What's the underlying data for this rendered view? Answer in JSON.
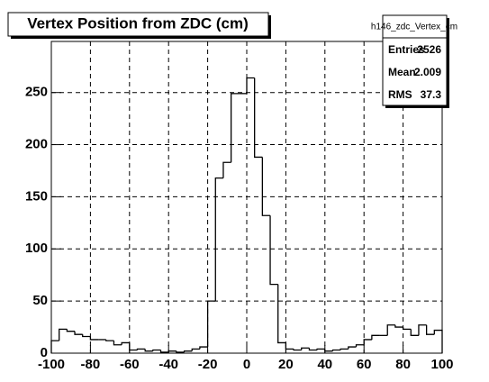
{
  "chart_data": {
    "type": "histogram",
    "title": "Vertex Position from ZDC (cm)",
    "bins": [
      -100,
      -96,
      -92,
      -88,
      -84,
      -80,
      -76,
      -72,
      -68,
      -64,
      -60,
      -56,
      -52,
      -48,
      -44,
      -40,
      -36,
      -32,
      -28,
      -24,
      -20,
      -16,
      -12,
      -8,
      -4,
      0,
      4,
      8,
      12,
      16,
      20,
      24,
      28,
      32,
      36,
      40,
      44,
      48,
      52,
      56,
      60,
      64,
      68,
      72,
      76,
      80,
      84,
      88,
      92,
      96,
      100
    ],
    "counts": [
      12,
      23,
      21,
      18,
      16,
      13,
      13,
      12,
      8,
      10,
      3,
      4,
      2,
      3,
      1,
      2,
      1,
      2,
      4,
      6,
      50,
      168,
      183,
      249,
      249,
      264,
      188,
      132,
      66,
      10,
      4,
      3,
      5,
      3,
      4,
      2,
      3,
      4,
      6,
      8,
      13,
      17,
      17,
      27,
      25,
      23,
      17,
      27,
      18,
      22
    ],
    "color": "#000000",
    "xlim": [
      -100,
      100
    ],
    "xticks": [
      -100,
      -80,
      -60,
      -40,
      -20,
      0,
      20,
      40,
      60,
      80,
      100
    ],
    "ylim": [
      0,
      299
    ],
    "yticks": [
      0,
      50,
      100,
      150,
      200,
      250
    ],
    "grid": true,
    "stats": {
      "title": "h146_zdc_Vertex_cm",
      "rows": [
        [
          "Entries",
          "2526"
        ],
        [
          "Mean",
          "2.009"
        ],
        [
          "RMS",
          "37.3"
        ]
      ]
    }
  }
}
